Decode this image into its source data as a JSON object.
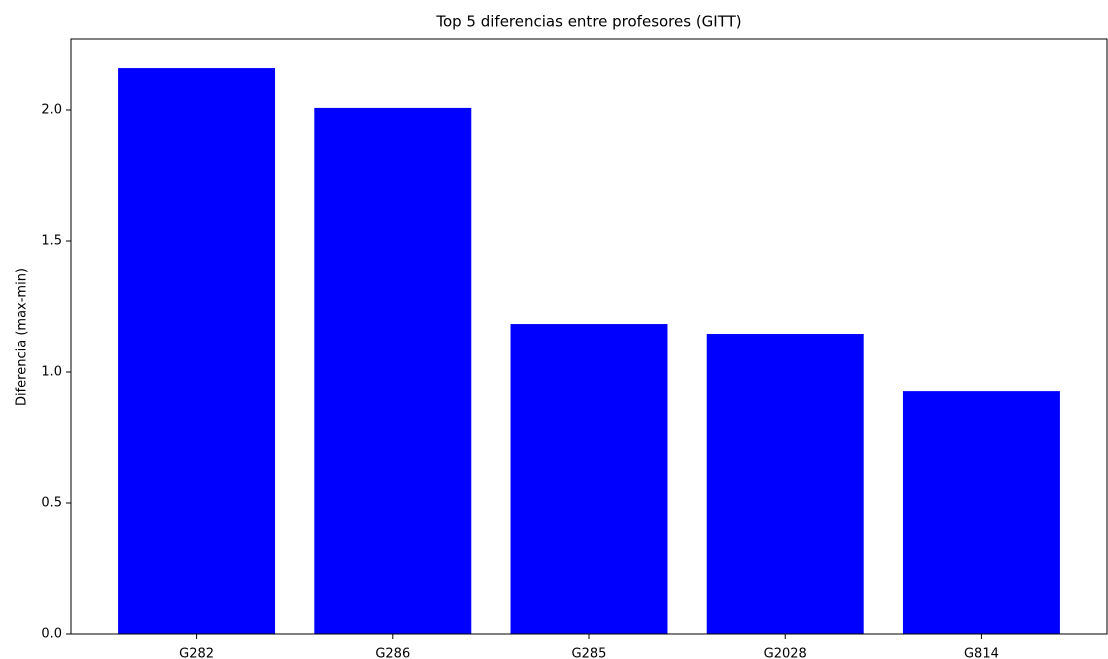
{
  "chart_data": {
    "type": "bar",
    "title": "Top 5 diferencias entre profesores (GITT)",
    "y_label": "Diferencia (max-min)",
    "categories": [
      "G282",
      "G286",
      "G285",
      "G2028",
      "G814"
    ],
    "values": [
      2.16,
      2.008,
      1.183,
      1.145,
      0.927
    ],
    "color": "#0000ff",
    "ylim": [
      0,
      2.271
    ],
    "yticks": [
      {
        "value": 0,
        "label": "0.0"
      },
      0.5,
      {
        "value": 1,
        "label": "1.0"
      },
      1.5,
      {
        "value": 2,
        "label": "2.0"
      }
    ],
    "grid": false
  }
}
